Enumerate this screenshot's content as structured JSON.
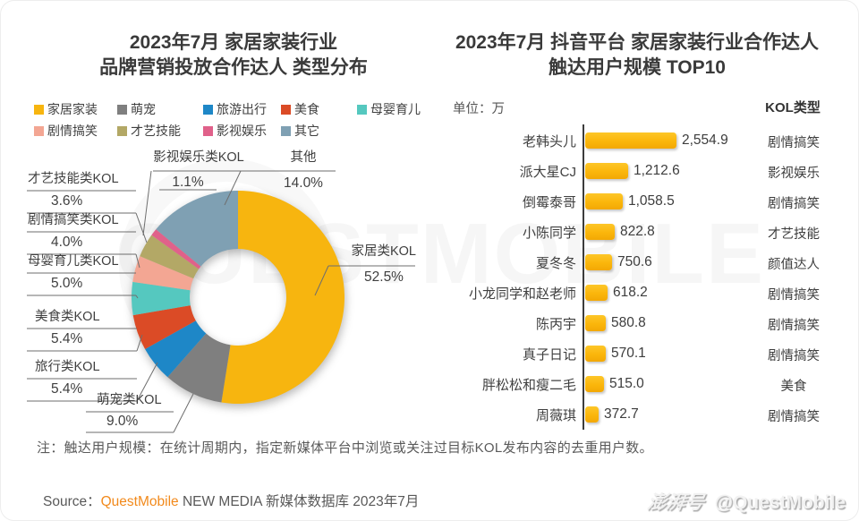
{
  "watermark": {
    "text": "QUESTMOBILE"
  },
  "donut": {
    "title_line1": "2023年7月 家居家装行业",
    "title_line2": "品牌营销投放合作达人 类型分布"
  },
  "bars": {
    "title_line1": "2023年7月 抖音平台 家居家装行业合作达人",
    "title_line2": "触达用户规模 TOP10",
    "unit_label": "单位：万",
    "type_header": "KOL类型"
  },
  "footer": {
    "note": "注：触达用户规模：在统计周期内，指定新媒体平台中浏览或关注过目标KOL发布内容的去重用户数。",
    "source_prefix": "Source：",
    "source_brand": "QuestMobile",
    "source_rest": " NEW MEDIA 新媒体数据库 2023年7月",
    "brand_logo": "澎湃号",
    "brand_handle": "@QuestMobile"
  },
  "chart_data": [
    {
      "type": "pie",
      "subtype": "donut",
      "title": "2023年7月 家居家装行业 品牌营销投放合作达人 类型分布",
      "start_angle_deg": 0,
      "direction": "clockwise",
      "unit": "%",
      "labels": [
        "家居家装",
        "萌宠",
        "旅游出行",
        "美食",
        "母婴育儿",
        "剧情搞笑",
        "才艺技能",
        "影视娱乐",
        "其它"
      ],
      "values": [
        52.5,
        9.0,
        5.4,
        5.4,
        5.0,
        4.0,
        3.6,
        1.1,
        14.0
      ],
      "colors": [
        "#F7B50F",
        "#7F7F7F",
        "#1E87C7",
        "#DB4B26",
        "#55C8BF",
        "#F3A693",
        "#B3A866",
        "#E0618A",
        "#7FA0B3"
      ],
      "legend_position": "top",
      "callouts": [
        {
          "slice": "家居家装",
          "label": "家居类KOL",
          "pct": "52.5%"
        },
        {
          "slice": "其它",
          "label": "其他",
          "pct": "14.0%"
        },
        {
          "slice": "影视娱乐",
          "label": "影视娱乐类KOL",
          "pct": "1.1%"
        },
        {
          "slice": "才艺技能",
          "label": "才艺技能类KOL",
          "pct": "3.6%"
        },
        {
          "slice": "剧情搞笑",
          "label": "剧情搞笑类KOL",
          "pct": "4.0%"
        },
        {
          "slice": "母婴育儿",
          "label": "母婴育儿类KOL",
          "pct": "5.0%"
        },
        {
          "slice": "美食",
          "label": "美食类KOL",
          "pct": "5.4%"
        },
        {
          "slice": "旅游出行",
          "label": "旅行类KOL",
          "pct": "5.4%"
        },
        {
          "slice": "萌宠",
          "label": "萌宠类KOL",
          "pct": "9.0%"
        }
      ]
    },
    {
      "type": "bar",
      "orientation": "horizontal",
      "title": "2023年7月 抖音平台 家居家装行业合作达人 触达用户规模 TOP10",
      "unit": "万",
      "categories": [
        "老韩头儿",
        "派大星CJ",
        "倒霉泰哥",
        "小陈同学",
        "夏冬冬",
        "小龙同学和赵老师",
        "陈丙宇",
        "真子日记",
        "胖松松和瘦二毛",
        "周薇琪"
      ],
      "values": [
        2554.9,
        1212.6,
        1058.5,
        822.8,
        750.6,
        618.2,
        580.8,
        570.1,
        515.0,
        372.7
      ],
      "value_labels": [
        "2,554.9",
        "1,212.6",
        "1,058.5",
        "822.8",
        "750.6",
        "618.2",
        "580.8",
        "570.1",
        "515.0",
        "372.7"
      ],
      "kol_types": [
        "剧情搞笑",
        "影视娱乐",
        "剧情搞笑",
        "才艺技能",
        "颜值达人",
        "剧情搞笑",
        "剧情搞笑",
        "剧情搞笑",
        "美食",
        "剧情搞笑"
      ],
      "bar_color": "#FBB60B",
      "xlim": [
        0,
        2600
      ]
    }
  ]
}
